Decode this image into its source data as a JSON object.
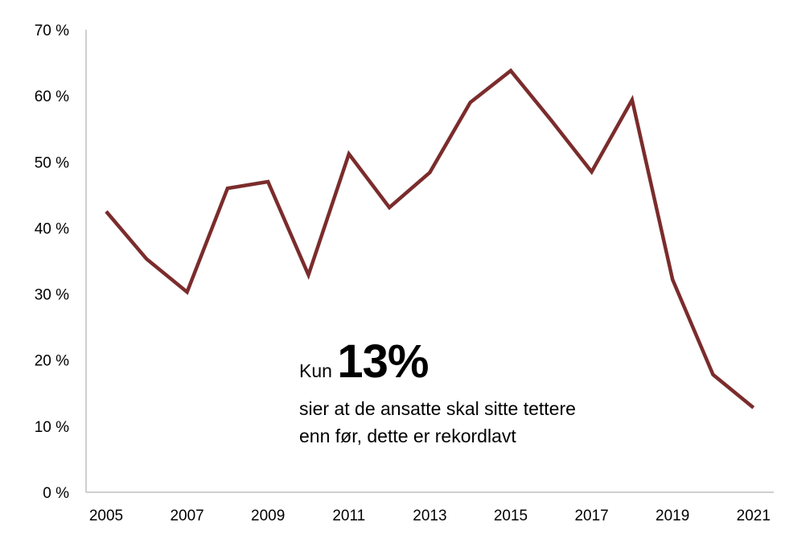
{
  "chart_data": {
    "type": "line",
    "title": "",
    "xlabel": "",
    "ylabel": "",
    "x": [
      2005,
      2006,
      2007,
      2008,
      2009,
      2010,
      2011,
      2012,
      2013,
      2014,
      2015,
      2016,
      2017,
      2018,
      2019,
      2020,
      2021
    ],
    "series": [
      {
        "values": [
          42.5,
          35.3,
          30.3,
          46.0,
          47.0,
          32.9,
          51.2,
          43.1,
          48.4,
          59.0,
          63.8,
          56.3,
          48.5,
          59.4,
          32.2,
          17.8,
          12.8
        ],
        "color": "#7b2c2c"
      }
    ],
    "ylim": [
      0,
      70
    ],
    "yticks": [
      "0 %",
      "10 %",
      "20 %",
      "30 %",
      "40 %",
      "50 %",
      "60 %",
      "70 %"
    ],
    "xticks": [
      "2005",
      "2007",
      "2009",
      "2011",
      "2013",
      "2015",
      "2017",
      "2019",
      "2021"
    ],
    "grid": false,
    "legend": "none",
    "annotation": {
      "prefix": "Kun",
      "highlight": "13%",
      "text": "sier at de ansatte skal sitte tettere enn før, dette er rekordlavt"
    }
  }
}
